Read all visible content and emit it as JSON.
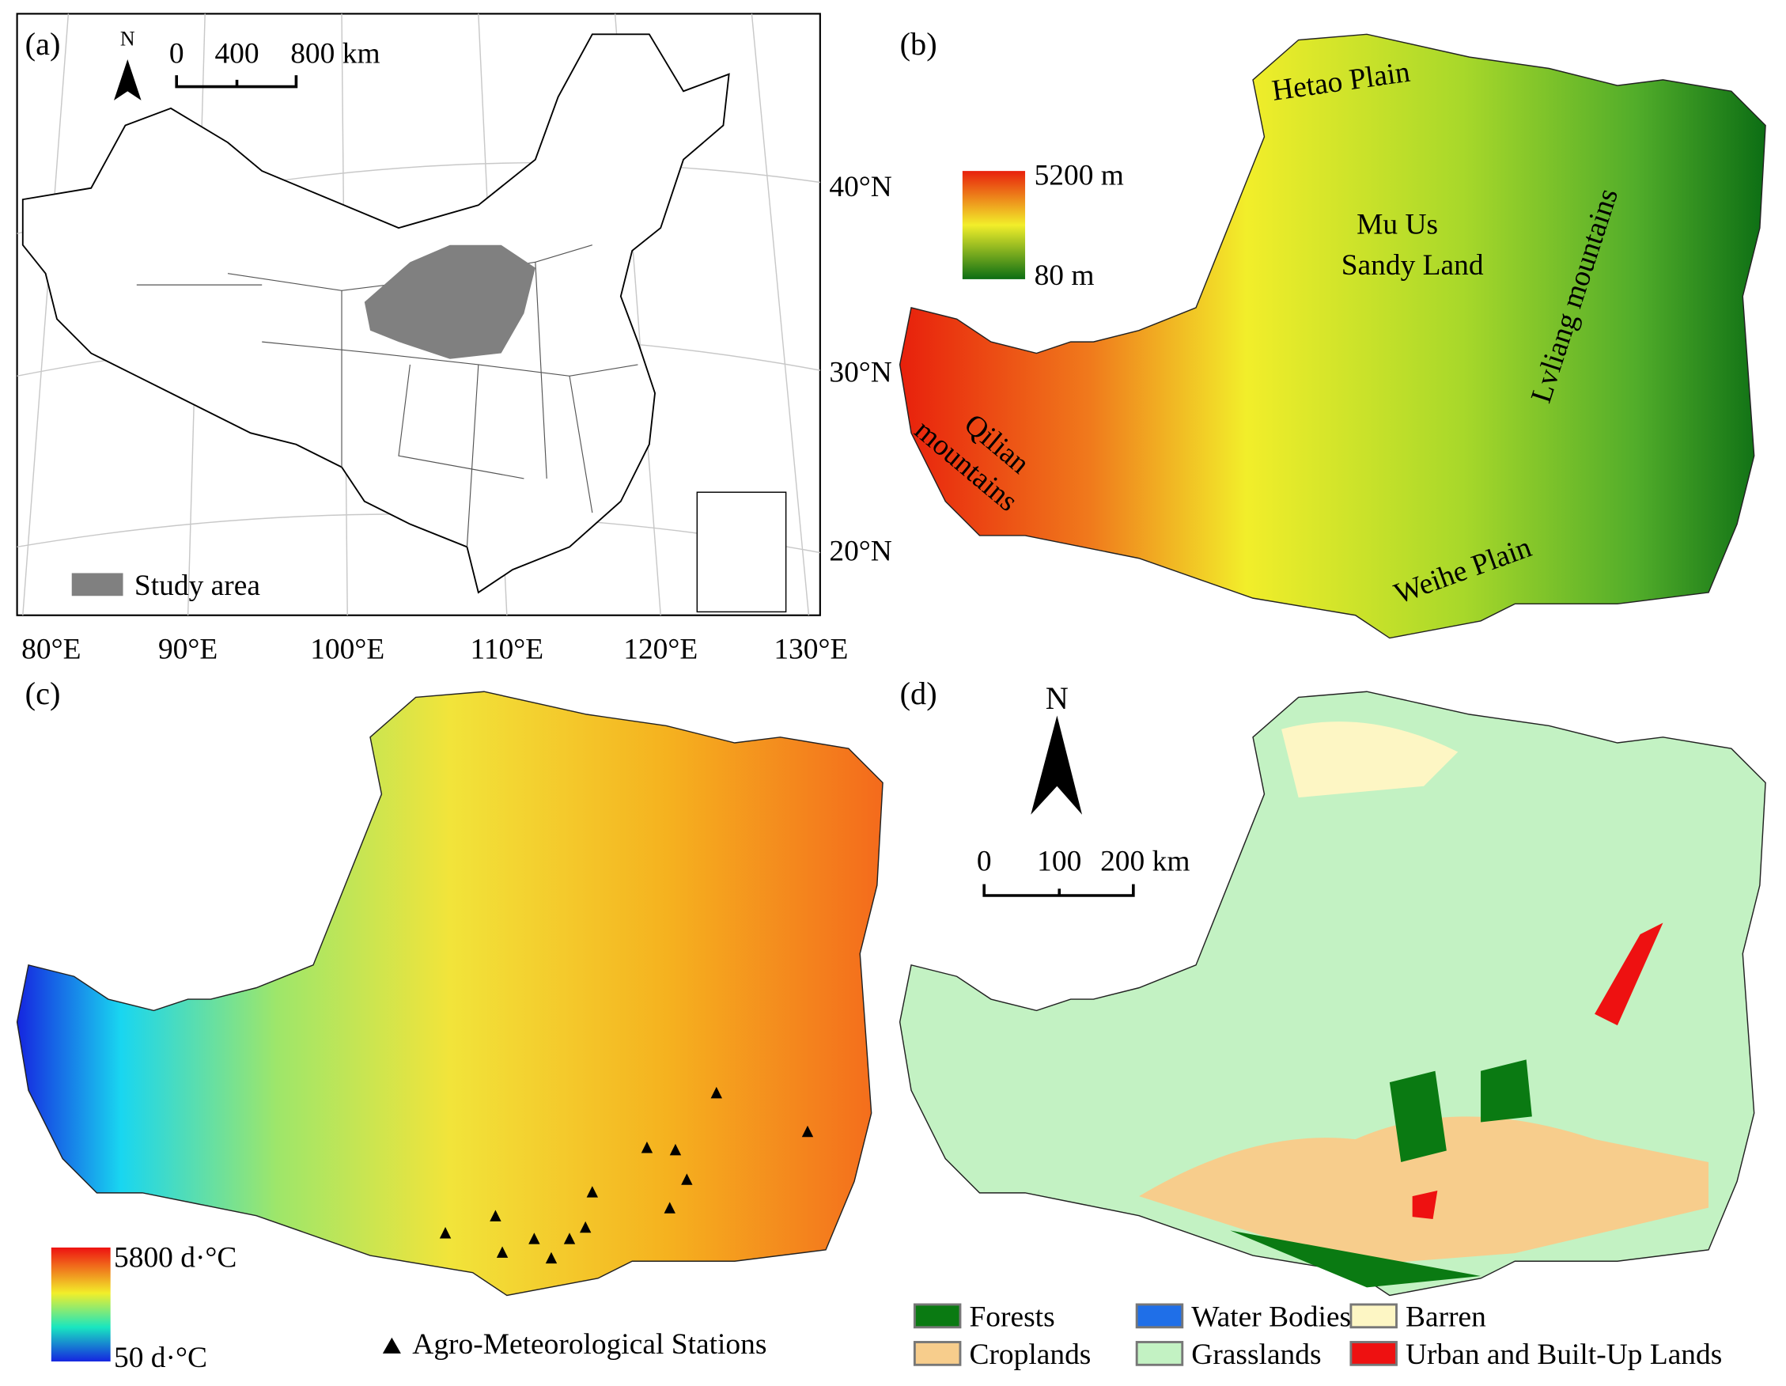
{
  "panel_a": {
    "label": "(a)",
    "north": "N",
    "scale": [
      "0",
      "400",
      "800 km"
    ],
    "latitudes": [
      "40°N",
      "30°N",
      "20°N"
    ],
    "longitudes": [
      "80°E",
      "90°E",
      "100°E",
      "110°E",
      "120°E",
      "130°E"
    ],
    "legend": "Study area"
  },
  "panel_b": {
    "label": "(b)",
    "legend_max": "5200 m",
    "legend_min": "80 m",
    "places": {
      "hetao": "Hetao Plain",
      "muus": [
        "Mu Us",
        "Sandy Land"
      ],
      "lvliang": "Lvliang mountains",
      "qilian": [
        "Qilian",
        "mountains"
      ],
      "weihe": "Weihe Plain"
    }
  },
  "panel_c": {
    "label": "(c)",
    "legend_max": "5800 d·°C",
    "legend_min": "50 d·°C",
    "stations": "Agro-Meteorological Stations"
  },
  "panel_d": {
    "label": "(d)",
    "north": "N",
    "scale": [
      "0",
      "100",
      "200 km"
    ],
    "legend": [
      {
        "name": "Forests",
        "color": "#0a7a12"
      },
      {
        "name": "Croplands",
        "color": "#f7cd8c"
      },
      {
        "name": "Water Bodies",
        "color": "#1f6fe8"
      },
      {
        "name": "Grasslands",
        "color": "#c3f2c3"
      },
      {
        "name": "Barren",
        "color": "#fdf6c4"
      },
      {
        "name": "Urban and Built-Up Lands",
        "color": "#ee1111"
      }
    ]
  }
}
